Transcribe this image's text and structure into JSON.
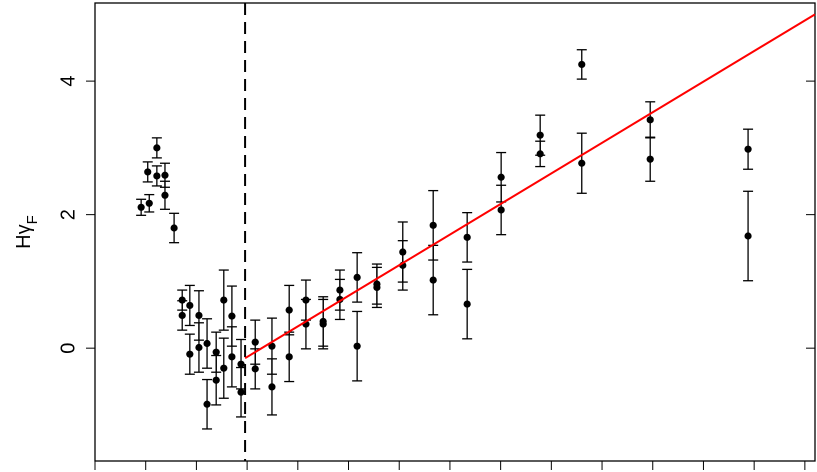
{
  "chart_data": {
    "type": "scatter",
    "y_label": "Hγ",
    "y_label_sub": "F",
    "xlim": [
      0,
      14.2
    ],
    "ylim": [
      -1.69,
      5.17
    ],
    "xticks": [
      0,
      1,
      2,
      3,
      4,
      5,
      6,
      7,
      8,
      9,
      10,
      11,
      12,
      13,
      14
    ],
    "yticks": [
      0,
      2,
      4
    ],
    "series": [
      {
        "color": "#000000",
        "x": [
          0.91,
          1.07,
          1.04,
          1.22,
          1.22,
          1.38,
          1.38,
          1.56,
          1.72,
          1.72,
          1.87,
          1.87,
          2.05,
          2.05,
          2.21,
          2.21,
          2.39,
          2.39,
          2.54,
          2.54,
          2.7,
          2.7,
          2.88,
          2.88,
          3.16,
          3.16,
          3.49,
          3.49,
          3.83,
          3.83,
          4.16,
          4.16,
          4.5,
          4.5,
          4.83,
          4.83,
          5.17,
          5.17,
          5.56,
          5.56,
          6.07,
          6.07,
          6.67,
          6.67,
          7.34,
          7.34,
          8.01,
          8.01,
          8.78,
          8.78,
          9.6,
          9.6,
          10.95,
          10.95,
          12.88,
          12.88
        ],
        "values": [
          2.11,
          2.17,
          2.64,
          3.0,
          2.58,
          2.59,
          2.29,
          1.8,
          0.72,
          0.49,
          0.64,
          -0.09,
          0.49,
          0.01,
          0.07,
          -0.84,
          -0.06,
          -0.48,
          0.72,
          -0.3,
          0.48,
          -0.13,
          -0.24,
          -0.66,
          0.09,
          -0.31,
          0.03,
          -0.58,
          0.57,
          -0.13,
          0.72,
          0.36,
          0.4,
          0.36,
          0.87,
          0.73,
          1.06,
          0.03,
          0.96,
          0.91,
          1.44,
          1.24,
          1.84,
          1.02,
          1.66,
          0.66,
          2.56,
          2.07,
          3.19,
          2.91,
          4.25,
          2.77,
          3.42,
          2.83,
          2.98,
          1.68
        ],
        "errors": [
          0.12,
          0.13,
          0.15,
          0.15,
          0.15,
          0.18,
          0.21,
          0.22,
          0.15,
          0.22,
          0.3,
          0.3,
          0.37,
          0.37,
          0.37,
          0.37,
          0.3,
          0.37,
          0.45,
          0.45,
          0.45,
          0.45,
          0.37,
          0.37,
          0.33,
          0.3,
          0.42,
          0.42,
          0.37,
          0.37,
          0.3,
          0.37,
          0.37,
          0.37,
          0.3,
          0.3,
          0.37,
          0.52,
          0.3,
          0.3,
          0.45,
          0.37,
          0.52,
          0.52,
          0.37,
          0.52,
          0.37,
          0.37,
          0.3,
          0.19,
          0.22,
          0.45,
          0.27,
          0.33,
          0.3,
          0.67
        ]
      }
    ],
    "fit": {
      "color": "#ff0000",
      "x": [
        2.96,
        14.2
      ],
      "y": [
        -0.15,
        5.0
      ]
    },
    "vline": 2.96
  }
}
